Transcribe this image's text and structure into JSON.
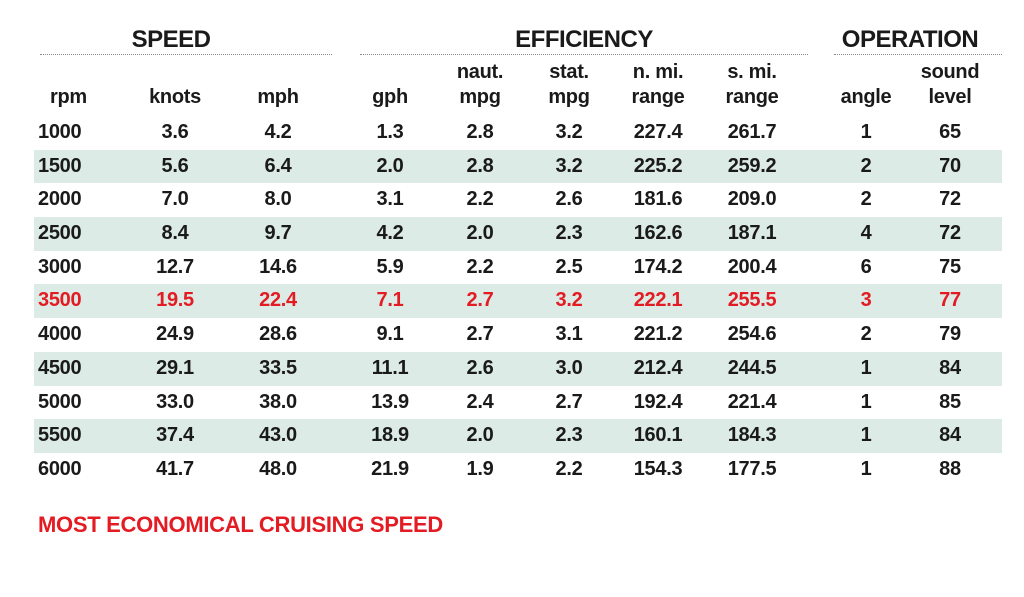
{
  "groups": {
    "speed": "SPEED",
    "efficiency": "EFFICIENCY",
    "operation": "OPERATION"
  },
  "columns": [
    {
      "key": "rpm",
      "line1": "",
      "line2": "rpm"
    },
    {
      "key": "knots",
      "line1": "",
      "line2": "knots"
    },
    {
      "key": "mph",
      "line1": "",
      "line2": "mph"
    },
    {
      "key": "gph",
      "line1": "",
      "line2": "gph"
    },
    {
      "key": "naut_mpg",
      "line1": "naut.",
      "line2": "mpg"
    },
    {
      "key": "stat_mpg",
      "line1": "stat.",
      "line2": "mpg"
    },
    {
      "key": "nmi_range",
      "line1": "n. mi.",
      "line2": "range"
    },
    {
      "key": "smi_range",
      "line1": "s. mi.",
      "line2": "range"
    },
    {
      "key": "angle",
      "line1": "",
      "line2": "angle"
    },
    {
      "key": "sound_level",
      "line1": "sound",
      "line2": "level"
    }
  ],
  "rows": [
    [
      "1000",
      "3.6",
      "4.2",
      "1.3",
      "2.8",
      "3.2",
      "227.4",
      "261.7",
      "1",
      "65"
    ],
    [
      "1500",
      "5.6",
      "6.4",
      "2.0",
      "2.8",
      "3.2",
      "225.2",
      "259.2",
      "2",
      "70"
    ],
    [
      "2000",
      "7.0",
      "8.0",
      "3.1",
      "2.2",
      "2.6",
      "181.6",
      "209.0",
      "2",
      "72"
    ],
    [
      "2500",
      "8.4",
      "9.7",
      "4.2",
      "2.0",
      "2.3",
      "162.6",
      "187.1",
      "4",
      "72"
    ],
    [
      "3000",
      "12.7",
      "14.6",
      "5.9",
      "2.2",
      "2.5",
      "174.2",
      "200.4",
      "6",
      "75"
    ],
    [
      "3500",
      "19.5",
      "22.4",
      "7.1",
      "2.7",
      "3.2",
      "222.1",
      "255.5",
      "3",
      "77"
    ],
    [
      "4000",
      "24.9",
      "28.6",
      "9.1",
      "2.7",
      "3.1",
      "221.2",
      "254.6",
      "2",
      "79"
    ],
    [
      "4500",
      "29.1",
      "33.5",
      "11.1",
      "2.6",
      "3.0",
      "212.4",
      "244.5",
      "1",
      "84"
    ],
    [
      "5000",
      "33.0",
      "38.0",
      "13.9",
      "2.4",
      "2.7",
      "192.4",
      "221.4",
      "1",
      "85"
    ],
    [
      "5500",
      "37.4",
      "43.0",
      "18.9",
      "2.0",
      "2.3",
      "160.1",
      "184.3",
      "1",
      "84"
    ],
    [
      "6000",
      "41.7",
      "48.0",
      "21.9",
      "1.9",
      "2.2",
      "154.3",
      "177.5",
      "1",
      "88"
    ]
  ],
  "highlight_row": 5,
  "note": "MOST ECONOMICAL CRUISING SPEED",
  "colors": {
    "highlight": "#e31b23",
    "row_shade": "#dcebe5",
    "text": "#1a1a1a"
  }
}
